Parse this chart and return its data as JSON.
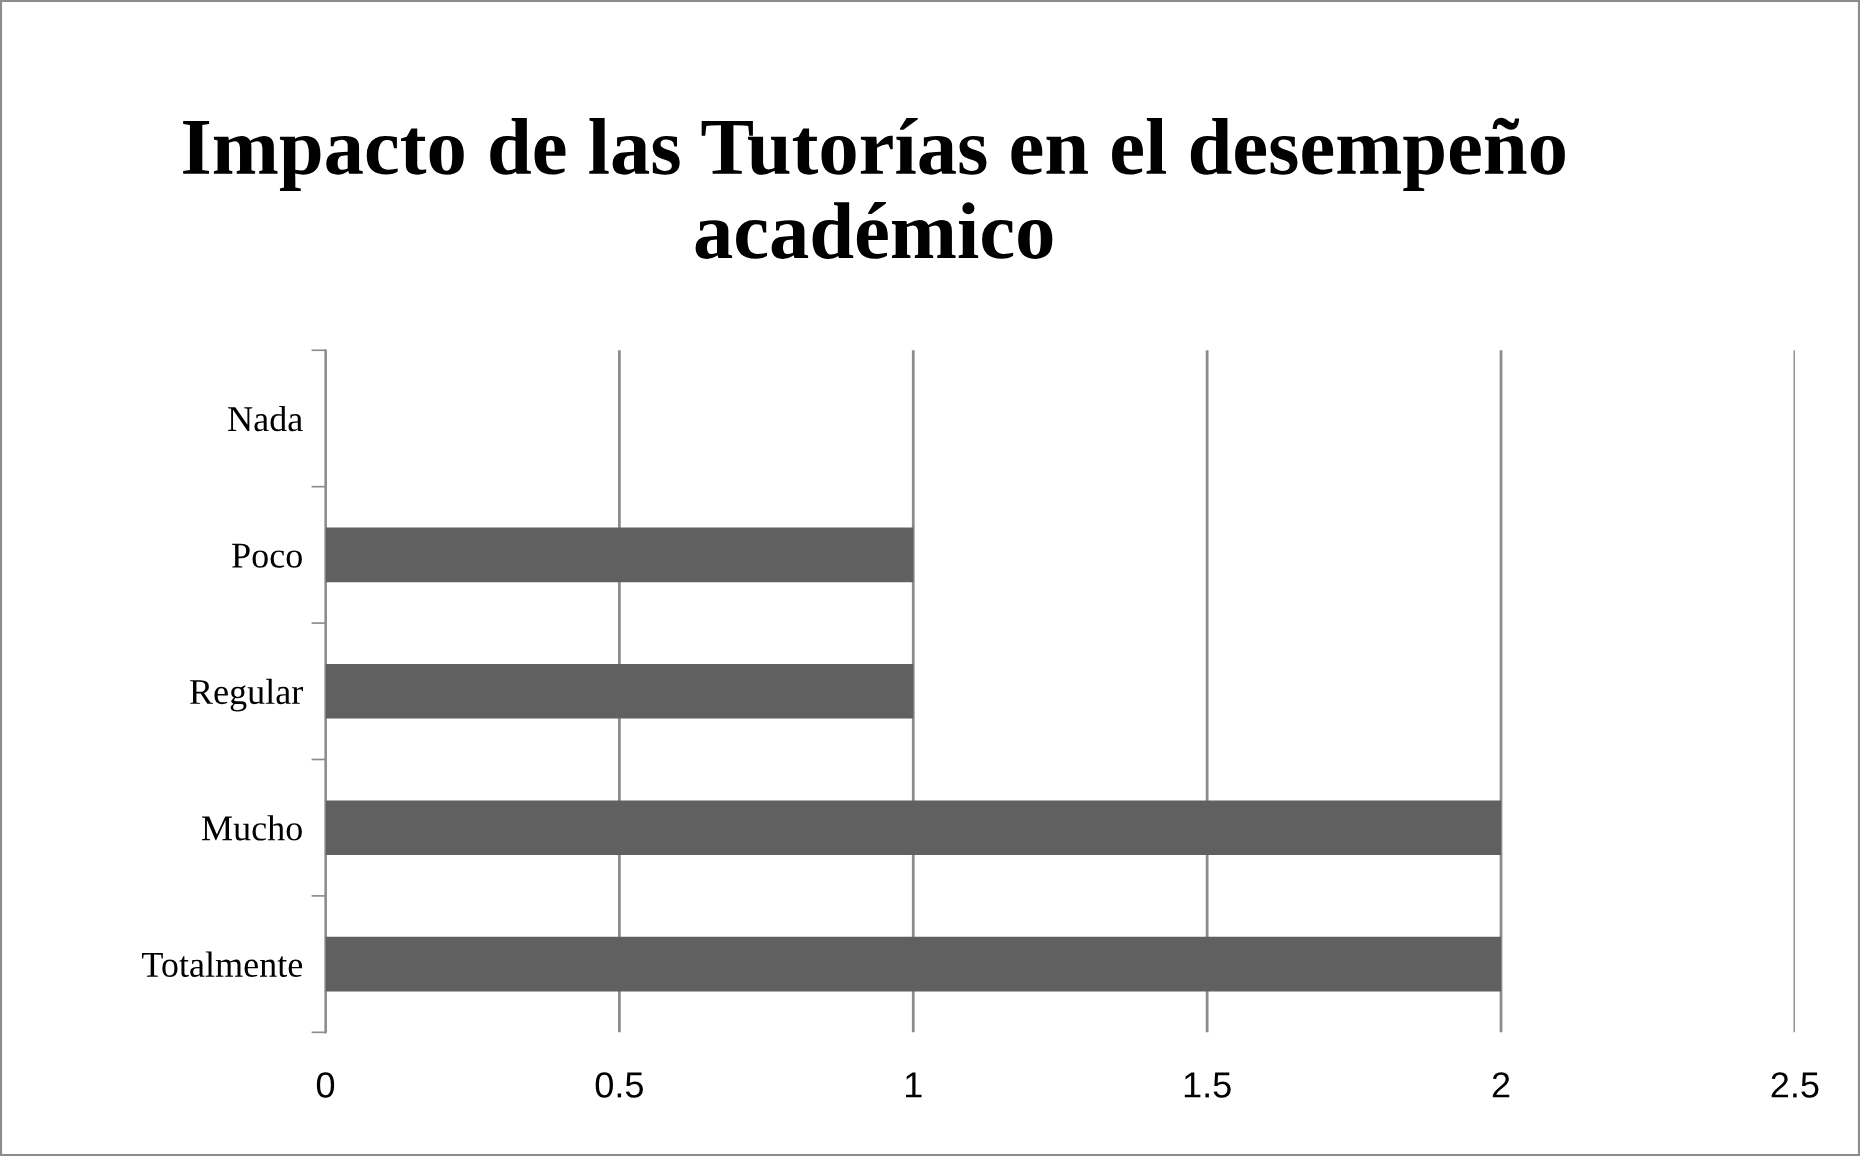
{
  "chart_data": {
    "type": "bar",
    "orientation": "horizontal",
    "title": "Impacto de las Tutorías en el desempeño académico",
    "categories": [
      "Nada",
      "Poco",
      "Regular",
      "Mucho",
      "Totalmente"
    ],
    "values": [
      0,
      1,
      1,
      2,
      2
    ],
    "color": "#606060",
    "xlim": [
      0,
      2.5
    ],
    "xticks": [
      0,
      0.5,
      1,
      1.5,
      2,
      2.5
    ],
    "grid": "x",
    "legend": false
  }
}
